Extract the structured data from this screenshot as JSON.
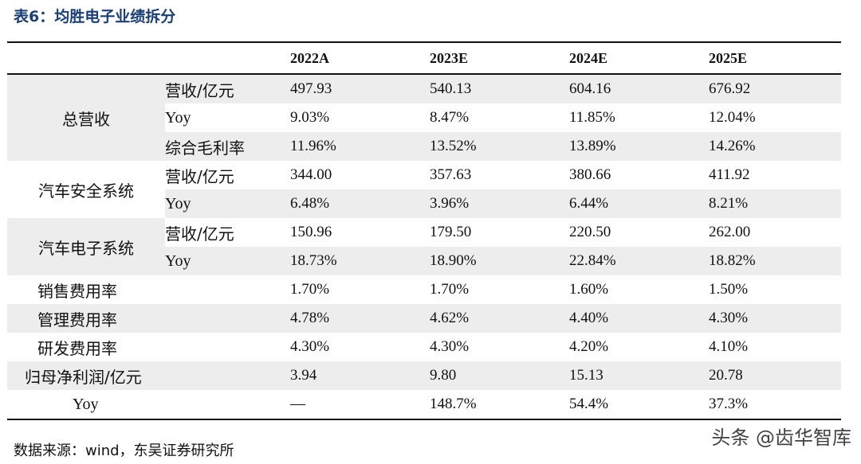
{
  "title": "表6：均胜电子业绩拆分",
  "header": {
    "years": [
      "2022A",
      "2023E",
      "2024E",
      "2025E"
    ]
  },
  "groups": {
    "total": {
      "label": "总营收",
      "rows": [
        {
          "label": "营收/亿元",
          "values": [
            "497.93",
            "540.13",
            "604.16",
            "676.92"
          ]
        },
        {
          "label": "Yoy",
          "values": [
            "9.03%",
            "8.47%",
            "11.85%",
            "12.04%"
          ]
        },
        {
          "label": "综合毛利率",
          "values": [
            "11.96%",
            "13.52%",
            "13.89%",
            "14.26%"
          ]
        }
      ]
    },
    "safety": {
      "label": "汽车安全系统",
      "rows": [
        {
          "label": "营收/亿元",
          "values": [
            "344.00",
            "357.63",
            "380.66",
            "411.92"
          ]
        },
        {
          "label": "Yoy",
          "values": [
            "6.48%",
            "3.96%",
            "6.44%",
            "8.21%"
          ]
        }
      ]
    },
    "electronics": {
      "label": "汽车电子系统",
      "rows": [
        {
          "label": "营收/亿元",
          "values": [
            "150.96",
            "179.50",
            "220.50",
            "262.00"
          ]
        },
        {
          "label": "Yoy",
          "values": [
            "18.73%",
            "18.90%",
            "22.84%",
            "18.82%"
          ]
        }
      ]
    }
  },
  "single_rows": [
    {
      "label": "销售费用率",
      "values": [
        "1.70%",
        "1.70%",
        "1.60%",
        "1.50%"
      ]
    },
    {
      "label": "管理费用率",
      "values": [
        "4.78%",
        "4.62%",
        "4.40%",
        "4.30%"
      ]
    },
    {
      "label": "研发费用率",
      "values": [
        "4.30%",
        "4.30%",
        "4.20%",
        "4.10%"
      ]
    },
    {
      "label": "归母净利润/亿元",
      "values": [
        "3.94",
        "9.80",
        "15.13",
        "20.78"
      ]
    },
    {
      "label": "Yoy",
      "values": [
        "—",
        "148.7%",
        "54.4%",
        "37.3%"
      ]
    }
  ],
  "source": "数据来源：wind，东吴证券研究所",
  "watermark": "头条 @齿华智库",
  "colors": {
    "title": "#1a3f78",
    "row_shade": "#ededed",
    "rule": "#111111"
  }
}
